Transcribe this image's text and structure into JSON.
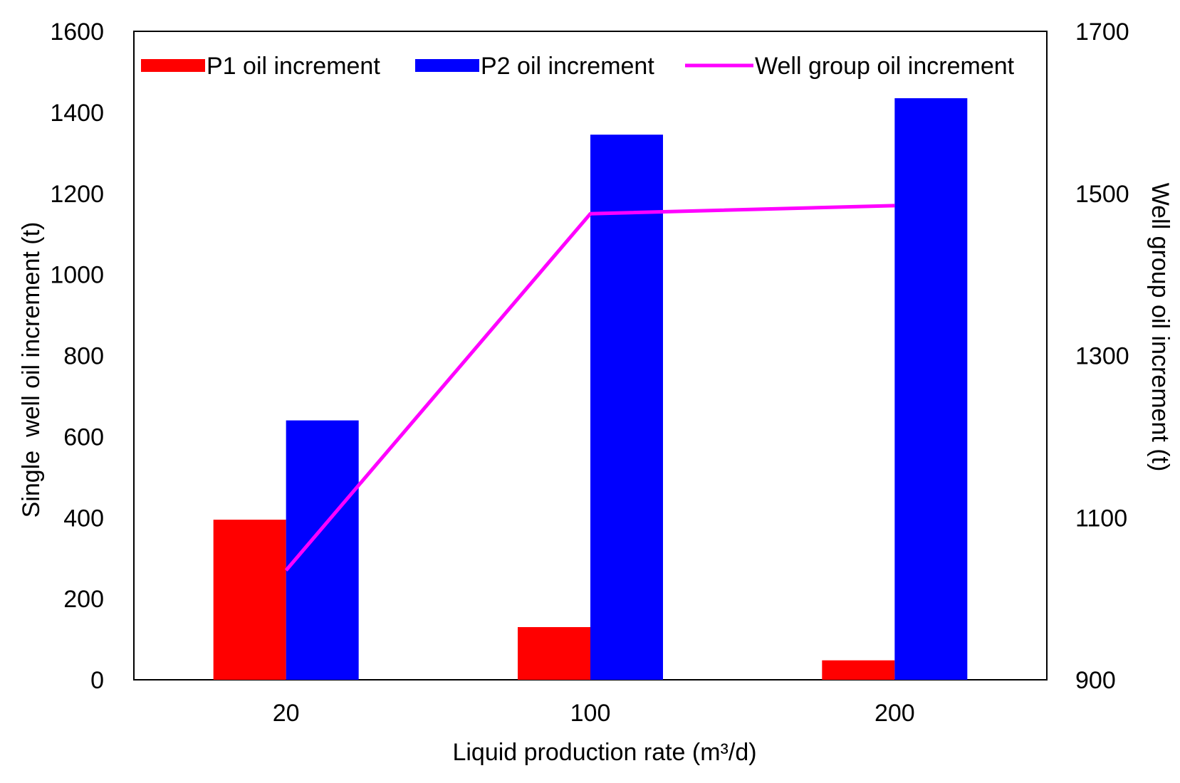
{
  "chart_data": {
    "type": "bar",
    "categories": [
      "20",
      "100",
      "200"
    ],
    "xlabel": "Liquid production rate (m³/d)",
    "ylabel": "Single  well oil increment (t)",
    "y2label": "Well group oil increment (t)",
    "ylim": [
      0,
      1600
    ],
    "y2lim": [
      900,
      1700
    ],
    "yticks": [
      "0",
      "200",
      "400",
      "600",
      "800",
      "1000",
      "1200",
      "1400",
      "1600"
    ],
    "y2ticks": [
      "900",
      "1100",
      "1300",
      "1500",
      "1700"
    ],
    "grid": false,
    "legend_position": "top",
    "series": [
      {
        "name": "P1 oil increment",
        "kind": "bar",
        "axis": "left",
        "color": "#ff0000",
        "values": [
          395,
          130,
          48
        ]
      },
      {
        "name": "P2 oil increment",
        "kind": "bar",
        "axis": "left",
        "color": "#0000ff",
        "values": [
          640,
          1345,
          1435
        ]
      },
      {
        "name": "Well group oil increment",
        "kind": "line",
        "axis": "right",
        "color": "#ff00ff",
        "values": [
          1035,
          1475,
          1485
        ]
      }
    ]
  }
}
